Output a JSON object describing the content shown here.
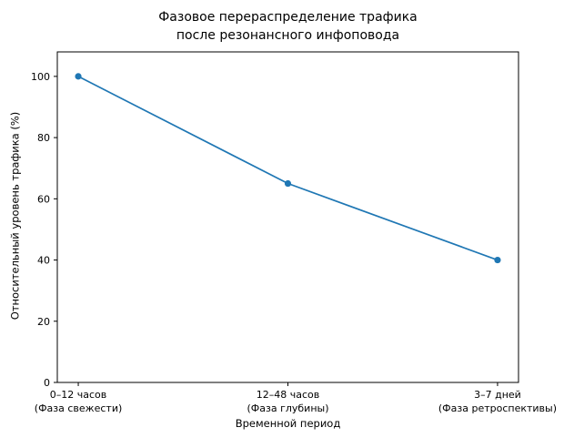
{
  "chart_data": {
    "type": "line",
    "title": "Фазовое перераспределение трафика\nпосле резонансного инфоповода",
    "xlabel": "Временной период",
    "ylabel": "Относительный уровень трафика (%)",
    "categories": [
      "0–12 часов\n(Фаза свежести)",
      "12–48 часов\n(Фаза глубины)",
      "3–7 дней\n(Фаза ретроспективы)"
    ],
    "values": [
      100,
      65,
      40
    ],
    "yticks": [
      0,
      20,
      40,
      60,
      80,
      100
    ],
    "ylim": [
      0,
      108
    ],
    "line_color": "#1f77b4",
    "marker": "circle",
    "grid": false,
    "legend_position": "none"
  }
}
